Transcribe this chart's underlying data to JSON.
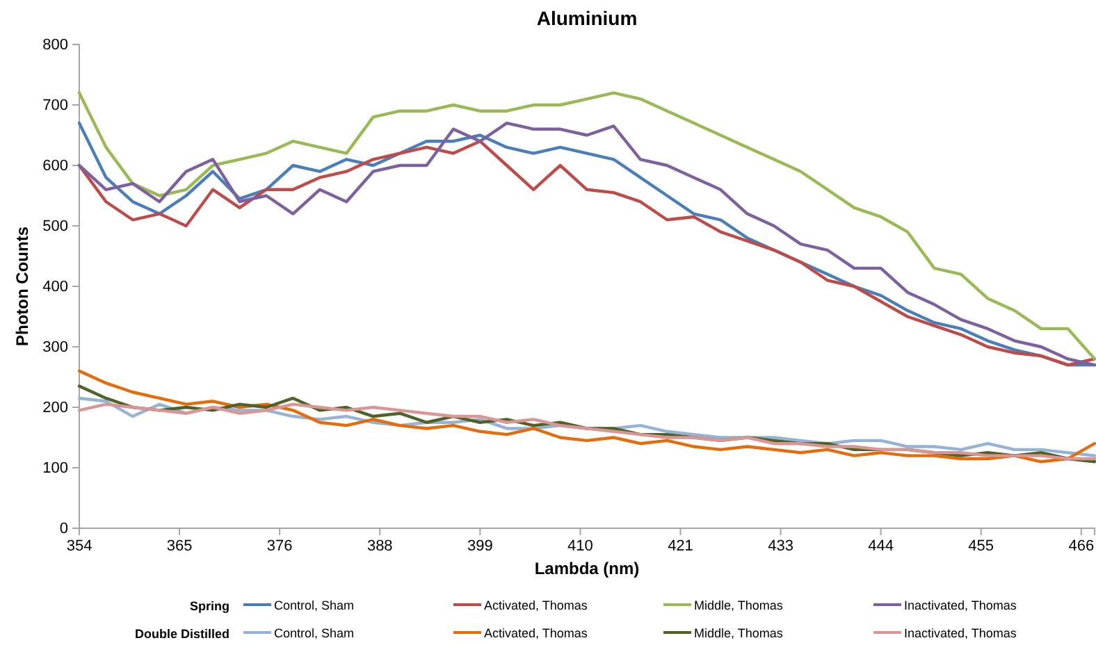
{
  "chart_data": {
    "type": "line",
    "title": "Aluminium",
    "xlabel": "Lambda (nm)",
    "ylabel": "Photon Counts",
    "annotations": [
      "Spring",
      "Double Distilled"
    ],
    "x": [
      354,
      357,
      360,
      363,
      366,
      369,
      372,
      375,
      378,
      381,
      384,
      387,
      390,
      393,
      396,
      399,
      402,
      405,
      408,
      411,
      414,
      417,
      420,
      423,
      426,
      429,
      432,
      435,
      438,
      441,
      444,
      447,
      450,
      453,
      456,
      459,
      462,
      465,
      468
    ],
    "xlim": [
      354,
      468
    ],
    "xticks": [
      {
        "value": 354,
        "label": "354"
      },
      {
        "value": 365.25,
        "label": "365"
      },
      {
        "value": 376.5,
        "label": "376"
      },
      {
        "value": 387.75,
        "label": "388"
      },
      {
        "value": 399,
        "label": "399"
      },
      {
        "value": 410.25,
        "label": "410"
      },
      {
        "value": 421.5,
        "label": "421"
      },
      {
        "value": 432.75,
        "label": "433"
      },
      {
        "value": 444,
        "label": "444"
      },
      {
        "value": 455.25,
        "label": "455"
      },
      {
        "value": 466.5,
        "label": "466"
      }
    ],
    "ylim": [
      0,
      800
    ],
    "yticks": [
      0,
      100,
      200,
      300,
      400,
      500,
      600,
      700,
      800
    ],
    "grid": false,
    "legend": "bottom",
    "marker": "none",
    "line_style": "solid",
    "series": [
      {
        "name": "Control, Sham",
        "color": "#4a7ebb",
        "values": [
          670,
          580,
          540,
          520,
          550,
          590,
          545,
          560,
          600,
          590,
          610,
          600,
          620,
          640,
          640,
          650,
          630,
          620,
          630,
          620,
          610,
          580,
          550,
          520,
          510,
          480,
          460,
          440,
          420,
          400,
          385,
          360,
          340,
          330,
          310,
          295,
          285,
          270,
          270
        ]
      },
      {
        "name": "Activated, Thomas",
        "color": "#be4b48",
        "values": [
          600,
          540,
          510,
          520,
          500,
          560,
          530,
          560,
          560,
          580,
          590,
          610,
          620,
          630,
          620,
          640,
          600,
          560,
          600,
          560,
          555,
          540,
          510,
          515,
          490,
          475,
          460,
          440,
          410,
          400,
          375,
          350,
          335,
          320,
          300,
          290,
          285,
          270,
          280
        ]
      },
      {
        "name": "Middle, Thomas",
        "color": "#98b954",
        "values": [
          720,
          630,
          570,
          550,
          560,
          600,
          610,
          620,
          640,
          630,
          620,
          680,
          690,
          690,
          700,
          690,
          690,
          700,
          700,
          710,
          720,
          710,
          690,
          670,
          650,
          630,
          610,
          590,
          560,
          530,
          515,
          490,
          430,
          420,
          380,
          360,
          330,
          330,
          280
        ]
      },
      {
        "name": "Inactivated, Thomas",
        "color": "#7d60a0",
        "values": [
          600,
          560,
          570,
          540,
          590,
          610,
          540,
          550,
          520,
          560,
          540,
          590,
          600,
          600,
          660,
          640,
          670,
          660,
          660,
          650,
          665,
          610,
          600,
          580,
          560,
          520,
          500,
          470,
          460,
          430,
          430,
          390,
          370,
          345,
          330,
          310,
          300,
          280,
          270
        ]
      },
      {
        "name": "Control, Sham",
        "color": "#95b3d7",
        "values": [
          215,
          210,
          185,
          205,
          190,
          200,
          195,
          195,
          185,
          180,
          185,
          175,
          170,
          175,
          175,
          180,
          165,
          165,
          170,
          165,
          165,
          170,
          160,
          155,
          150,
          150,
          150,
          145,
          140,
          145,
          145,
          135,
          135,
          130,
          140,
          130,
          130,
          125,
          120
        ]
      },
      {
        "name": "Activated, Thomas",
        "color": "#e46c0a",
        "values": [
          260,
          240,
          225,
          215,
          205,
          210,
          200,
          205,
          195,
          175,
          170,
          180,
          170,
          165,
          170,
          160,
          155,
          165,
          150,
          145,
          150,
          140,
          145,
          135,
          130,
          135,
          130,
          125,
          130,
          120,
          125,
          120,
          120,
          115,
          115,
          120,
          110,
          115,
          140
        ]
      },
      {
        "name": "Middle, Thomas",
        "color": "#4f6228",
        "values": [
          235,
          215,
          200,
          195,
          200,
          195,
          205,
          200,
          215,
          195,
          200,
          185,
          190,
          175,
          185,
          175,
          180,
          170,
          175,
          165,
          165,
          155,
          155,
          150,
          145,
          150,
          145,
          140,
          140,
          130,
          130,
          130,
          125,
          120,
          125,
          120,
          125,
          115,
          110
        ]
      },
      {
        "name": "Inactivated, Thomas",
        "color": "#d99694",
        "values": [
          195,
          205,
          200,
          195,
          190,
          200,
          190,
          195,
          205,
          200,
          195,
          200,
          195,
          190,
          185,
          185,
          175,
          180,
          170,
          165,
          160,
          155,
          150,
          150,
          145,
          150,
          140,
          140,
          135,
          135,
          130,
          130,
          125,
          125,
          120,
          120,
          120,
          115,
          115
        ]
      }
    ]
  }
}
